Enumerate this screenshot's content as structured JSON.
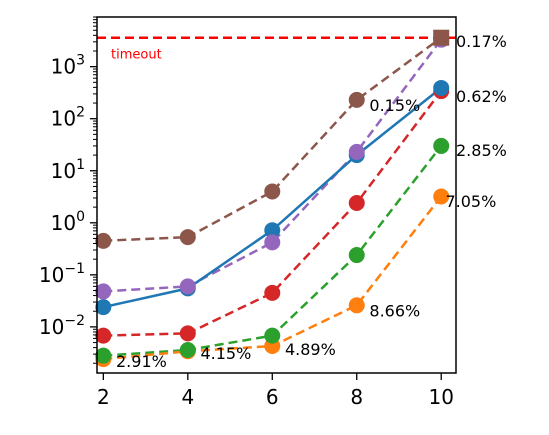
{
  "chart_data": {
    "type": "line",
    "yscale": "log",
    "x": [
      2,
      4,
      6,
      8,
      10
    ],
    "xlim": [
      1.85,
      10.35
    ],
    "ylim": [
      0.0013,
      9000
    ],
    "x_ticks": [
      "2",
      "4",
      "6",
      "8",
      "10"
    ],
    "y_ticks": [
      {
        "value": 0.01,
        "base": "10",
        "exp": "−2"
      },
      {
        "value": 0.1,
        "base": "10",
        "exp": "−1"
      },
      {
        "value": 1,
        "base": "10",
        "exp": "0"
      },
      {
        "value": 10,
        "base": "10",
        "exp": "1"
      },
      {
        "value": 100,
        "base": "10",
        "exp": "2"
      },
      {
        "value": 1000,
        "base": "10",
        "exp": "3"
      }
    ],
    "grid": false,
    "timeout": {
      "value": 3600,
      "label": "timeout",
      "color": "#ff0000"
    },
    "series": [
      {
        "color": "#8c564b",
        "style": "dashed",
        "values": [
          0.45,
          0.53,
          4.0,
          230,
          3600
        ],
        "last_marker": "square"
      },
      {
        "color": "#9467bd",
        "style": "dashed",
        "values": [
          0.048,
          0.06,
          0.42,
          23,
          3300
        ]
      },
      {
        "color": "#1f77b4",
        "style": "solid",
        "values": [
          0.024,
          0.055,
          0.72,
          20,
          390
        ]
      },
      {
        "color": "#d62728",
        "style": "dashed",
        "values": [
          0.0068,
          0.0075,
          0.045,
          2.4,
          340
        ]
      },
      {
        "color": "#2ca02c",
        "style": "dashed",
        "values": [
          0.0028,
          0.0036,
          0.0068,
          0.24,
          30
        ]
      },
      {
        "color": "#ff7f0e",
        "style": "dashed",
        "values": [
          0.0024,
          0.0034,
          0.0043,
          0.026,
          3.2
        ]
      }
    ],
    "annotations": [
      {
        "text": "0.17%",
        "x": 10.35,
        "y": 2400,
        "anchor": "start"
      },
      {
        "text": "0.62%",
        "x": 10.35,
        "y": 210,
        "anchor": "start"
      },
      {
        "text": "2.85%",
        "x": 10.35,
        "y": 19,
        "anchor": "start"
      },
      {
        "text": "7.05%",
        "x": 10.1,
        "y": 2.0,
        "anchor": "start"
      },
      {
        "text": "0.15%",
        "x": 8.3,
        "y": 140,
        "anchor": "start"
      },
      {
        "text": "8.66%",
        "x": 8.3,
        "y": 0.016,
        "anchor": "start"
      },
      {
        "text": "4.89%",
        "x": 6.3,
        "y": 0.0029,
        "anchor": "start"
      },
      {
        "text": "4.15%",
        "x": 4.3,
        "y": 0.0024,
        "anchor": "start"
      },
      {
        "text": "2.91%",
        "x": 2.3,
        "y": 0.0017,
        "anchor": "start"
      }
    ]
  }
}
